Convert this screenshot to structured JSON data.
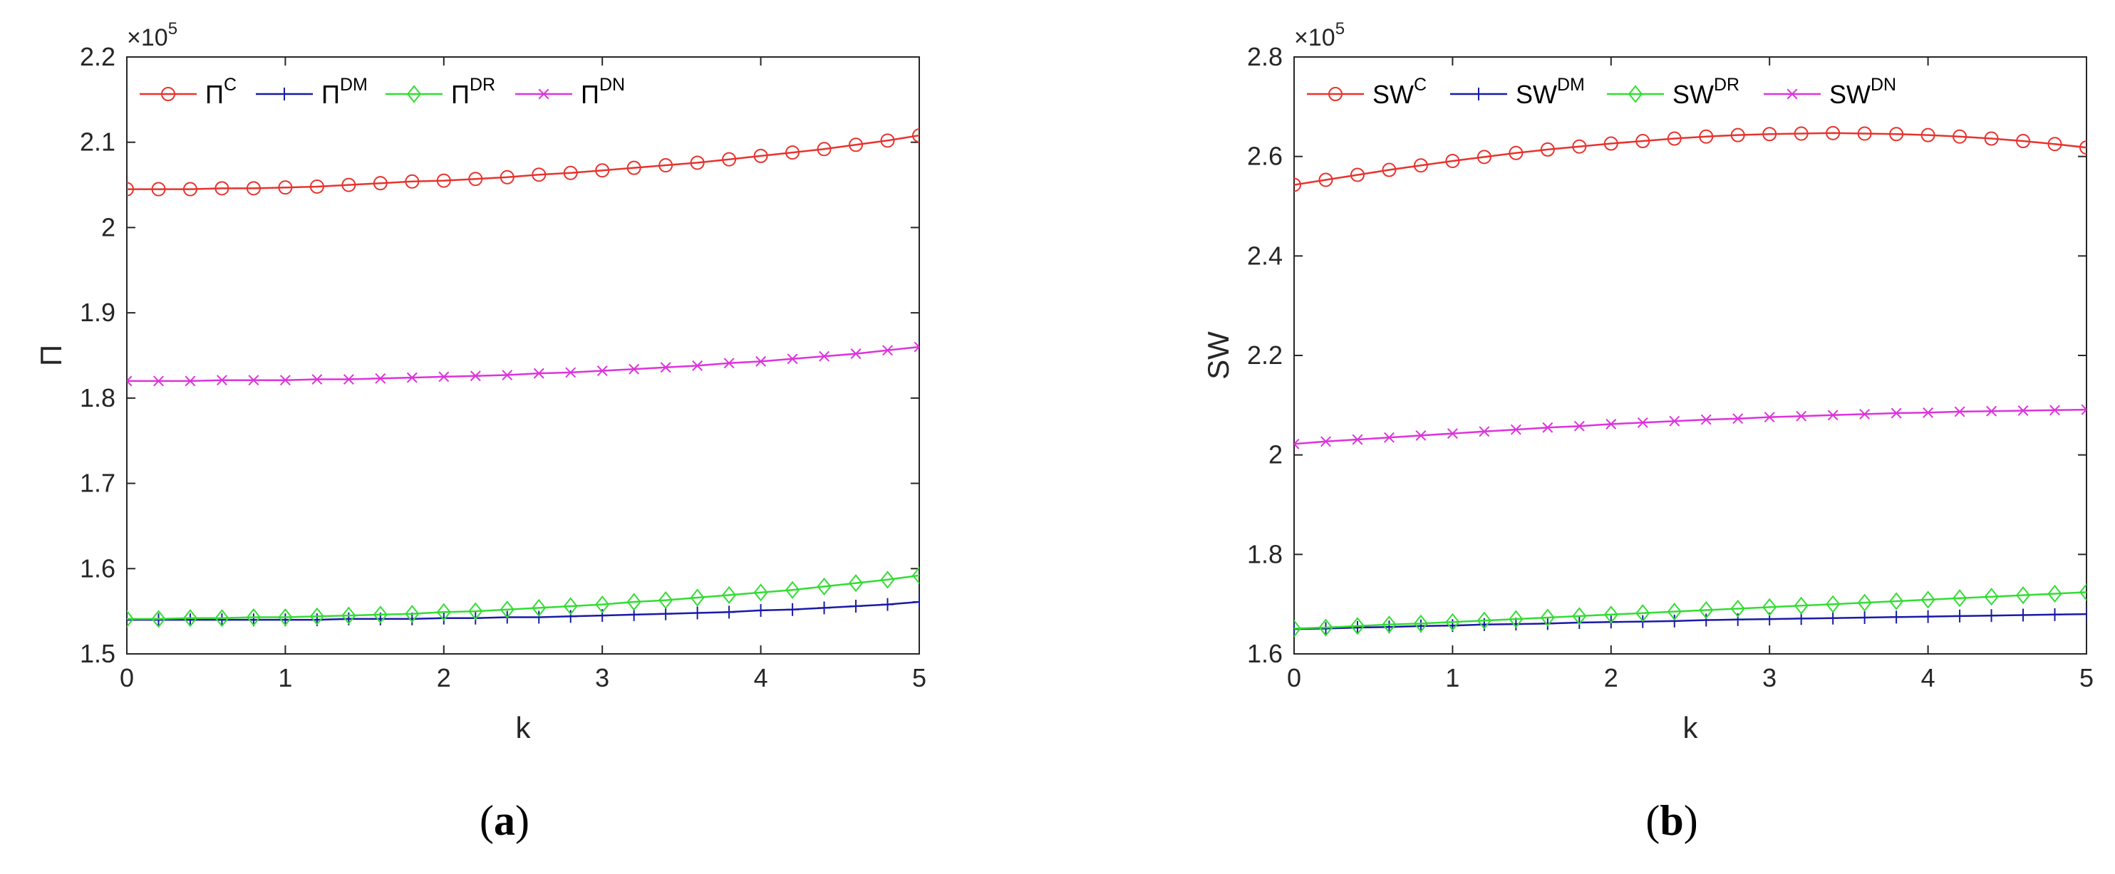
{
  "chart_data": [
    {
      "type": "line",
      "panel_label": "(a)",
      "panel_letter": "a",
      "xlabel": "k",
      "ylabel": "Π",
      "y_multiplier": "×10",
      "y_exponent": "5",
      "xlim": [
        0,
        5
      ],
      "ylim": [
        1.5,
        2.2
      ],
      "xticks": [
        "0",
        "1",
        "2",
        "3",
        "4",
        "5"
      ],
      "yticks": [
        "1.5",
        "1.6",
        "1.7",
        "1.8",
        "1.9",
        "2",
        "2.1",
        "2.2"
      ],
      "legend_position": "top-left",
      "x": [
        0,
        0.2,
        0.4,
        0.6,
        0.8,
        1,
        1.2,
        1.4,
        1.6,
        1.8,
        2,
        2.2,
        2.4,
        2.6,
        2.8,
        3,
        3.2,
        3.4,
        3.6,
        3.8,
        4,
        4.2,
        4.4,
        4.6,
        4.8,
        5
      ],
      "series": [
        {
          "name": "Π",
          "sup": "C",
          "color": "#e8332e",
          "marker": "circle",
          "values": [
            2.045,
            2.045,
            2.045,
            2.046,
            2.046,
            2.047,
            2.048,
            2.05,
            2.052,
            2.054,
            2.055,
            2.057,
            2.059,
            2.062,
            2.064,
            2.067,
            2.07,
            2.073,
            2.076,
            2.08,
            2.084,
            2.088,
            2.092,
            2.097,
            2.102,
            2.108
          ]
        },
        {
          "name": "Π",
          "sup": "DM",
          "color": "#1a1aa8",
          "marker": "plus",
          "values": [
            1.54,
            1.54,
            1.54,
            1.54,
            1.54,
            1.54,
            1.54,
            1.541,
            1.541,
            1.541,
            1.542,
            1.542,
            1.543,
            1.543,
            1.544,
            1.545,
            1.546,
            1.547,
            1.548,
            1.549,
            1.551,
            1.552,
            1.554,
            1.556,
            1.558,
            1.561
          ]
        },
        {
          "name": "Π",
          "sup": "DR",
          "color": "#33dd33",
          "marker": "diamond",
          "values": [
            1.541,
            1.541,
            1.542,
            1.542,
            1.543,
            1.543,
            1.544,
            1.545,
            1.546,
            1.547,
            1.549,
            1.55,
            1.552,
            1.554,
            1.556,
            1.558,
            1.561,
            1.563,
            1.566,
            1.569,
            1.572,
            1.575,
            1.579,
            1.583,
            1.587,
            1.592
          ]
        },
        {
          "name": "Π",
          "sup": "DN",
          "color": "#dd33dd",
          "marker": "x",
          "values": [
            1.82,
            1.82,
            1.82,
            1.821,
            1.821,
            1.821,
            1.822,
            1.822,
            1.823,
            1.824,
            1.825,
            1.826,
            1.827,
            1.829,
            1.83,
            1.832,
            1.834,
            1.836,
            1.838,
            1.841,
            1.843,
            1.846,
            1.849,
            1.852,
            1.856,
            1.86
          ]
        }
      ]
    },
    {
      "type": "line",
      "panel_label": "(b)",
      "panel_letter": "b",
      "xlabel": "k",
      "ylabel": "SW",
      "y_multiplier": "×10",
      "y_exponent": "5",
      "xlim": [
        0,
        5
      ],
      "ylim": [
        1.6,
        2.8
      ],
      "xticks": [
        "0",
        "1",
        "2",
        "3",
        "4",
        "5"
      ],
      "yticks": [
        "1.6",
        "1.8",
        "2",
        "2.2",
        "2.4",
        "2.6",
        "2.8"
      ],
      "legend_position": "top-left",
      "x": [
        0,
        0.2,
        0.4,
        0.6,
        0.8,
        1,
        1.2,
        1.4,
        1.6,
        1.8,
        2,
        2.2,
        2.4,
        2.6,
        2.8,
        3,
        3.2,
        3.4,
        3.6,
        3.8,
        4,
        4.2,
        4.4,
        4.6,
        4.8,
        5
      ],
      "series": [
        {
          "name": "SW",
          "sup": "C",
          "color": "#e8332e",
          "marker": "circle",
          "values": [
            2.543,
            2.553,
            2.563,
            2.573,
            2.582,
            2.591,
            2.599,
            2.607,
            2.614,
            2.62,
            2.626,
            2.631,
            2.636,
            2.64,
            2.643,
            2.645,
            2.646,
            2.647,
            2.646,
            2.645,
            2.643,
            2.64,
            2.636,
            2.631,
            2.625,
            2.618
          ]
        },
        {
          "name": "SW",
          "sup": "DM",
          "color": "#1a1aa8",
          "marker": "plus",
          "values": [
            1.65,
            1.651,
            1.653,
            1.654,
            1.656,
            1.657,
            1.659,
            1.66,
            1.661,
            1.663,
            1.664,
            1.665,
            1.666,
            1.668,
            1.669,
            1.67,
            1.671,
            1.672,
            1.673,
            1.674,
            1.675,
            1.676,
            1.677,
            1.678,
            1.679,
            1.68
          ]
        },
        {
          "name": "SW",
          "sup": "DR",
          "color": "#33dd33",
          "marker": "diamond",
          "values": [
            1.651,
            1.653,
            1.656,
            1.659,
            1.661,
            1.664,
            1.667,
            1.67,
            1.673,
            1.676,
            1.679,
            1.682,
            1.685,
            1.688,
            1.691,
            1.694,
            1.697,
            1.7,
            1.703,
            1.706,
            1.709,
            1.712,
            1.715,
            1.718,
            1.721,
            1.724
          ]
        },
        {
          "name": "SW",
          "sup": "DN",
          "color": "#dd33dd",
          "marker": "x",
          "values": [
            2.022,
            2.027,
            2.031,
            2.035,
            2.039,
            2.043,
            2.047,
            2.051,
            2.055,
            2.058,
            2.062,
            2.065,
            2.068,
            2.071,
            2.073,
            2.076,
            2.078,
            2.08,
            2.082,
            2.084,
            2.085,
            2.087,
            2.088,
            2.089,
            2.09,
            2.091
          ]
        }
      ]
    }
  ]
}
